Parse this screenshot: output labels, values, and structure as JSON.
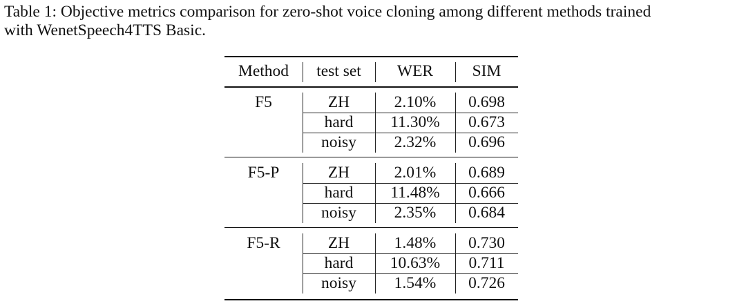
{
  "caption": {
    "line1": "Table 1: Objective metrics comparison for zero-shot voice cloning among different methods trained",
    "line2": "with WenetSpeech4TTS Basic."
  },
  "table": {
    "headers": [
      "Method",
      "test set",
      "WER",
      "SIM"
    ],
    "groups": [
      {
        "method": "F5",
        "rows": [
          [
            "ZH",
            "2.10%",
            "0.698"
          ],
          [
            "hard",
            "11.30%",
            "0.673"
          ],
          [
            "noisy",
            "2.32%",
            "0.696"
          ]
        ]
      },
      {
        "method": "F5-P",
        "rows": [
          [
            "ZH",
            "2.01%",
            "0.689"
          ],
          [
            "hard",
            "11.48%",
            "0.666"
          ],
          [
            "noisy",
            "2.35%",
            "0.684"
          ]
        ]
      },
      {
        "method": "F5-R",
        "rows": [
          [
            "ZH",
            "1.48%",
            "0.730"
          ],
          [
            "hard",
            "10.63%",
            "0.711"
          ],
          [
            "noisy",
            "1.54%",
            "0.726"
          ]
        ]
      }
    ]
  }
}
